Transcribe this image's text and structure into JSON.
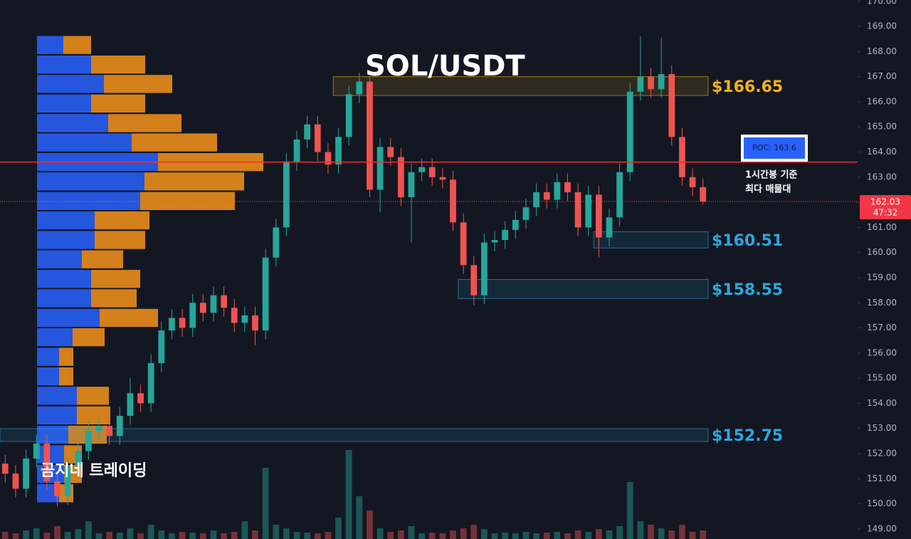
{
  "chart_data": {
    "type": "candlestick",
    "title": "SOL/USDT",
    "watermark": "곰지네 트레이딩",
    "ylim": [
      148.6,
      170.05
    ],
    "yticks": [
      {
        "value": 149,
        "label": "149.00"
      },
      {
        "value": 150,
        "label": "150.00"
      },
      {
        "value": 151,
        "label": "151.00"
      },
      {
        "value": 152,
        "label": "152.00"
      },
      {
        "value": 153,
        "label": "153.00"
      },
      {
        "value": 154,
        "label": "154.00"
      },
      {
        "value": 155,
        "label": "155.00"
      },
      {
        "value": 156,
        "label": "156.00"
      },
      {
        "value": 157,
        "label": "157.00"
      },
      {
        "value": 158,
        "label": "158.00"
      },
      {
        "value": 159,
        "label": "159.00"
      },
      {
        "value": 160,
        "label": "160.00"
      },
      {
        "value": 161,
        "label": "161.00"
      },
      {
        "value": 162,
        "label": "162.00"
      },
      {
        "value": 163,
        "label": "163.00"
      },
      {
        "value": 164,
        "label": "164.00"
      },
      {
        "value": 165,
        "label": "165.00"
      },
      {
        "value": 166,
        "label": "166.00"
      },
      {
        "value": 167,
        "label": "167.00"
      },
      {
        "value": 168,
        "label": "168.00"
      },
      {
        "value": 169,
        "label": "169.00"
      },
      {
        "value": 170,
        "label": "170.00"
      }
    ],
    "up_color": "#26a69a",
    "down_color": "#ef5350",
    "candles": {
      "open": [
        151.6,
        151.2,
        150.6,
        151.8,
        152.4,
        150.9,
        150.3,
        151.5,
        152.1,
        152.9,
        153.1,
        152.7,
        153.5,
        154.4,
        154.0,
        155.6,
        156.9,
        157.4,
        157.0,
        158.0,
        157.6,
        158.3,
        157.8,
        157.2,
        157.5,
        156.9,
        159.8,
        161.0,
        163.6,
        164.5,
        165.1,
        164.0,
        163.5,
        164.6,
        166.3,
        166.8,
        162.5,
        164.2,
        163.8,
        162.2,
        163.2,
        163.4,
        163.0,
        162.9,
        161.2,
        159.5,
        158.3,
        160.4,
        160.5,
        160.9,
        161.3,
        161.8,
        162.4,
        162.1,
        162.8,
        162.4,
        161.0,
        162.3,
        160.6,
        161.4,
        163.2,
        166.4,
        167.0,
        166.5,
        167.1,
        164.6,
        163.0,
        162.6
      ],
      "high": [
        151.95,
        151.55,
        152.15,
        152.75,
        152.75,
        151.25,
        151.85,
        152.45,
        153.25,
        153.45,
        153.45,
        153.85,
        155.0,
        154.75,
        155.95,
        157.25,
        157.75,
        157.75,
        158.35,
        158.35,
        158.65,
        158.65,
        158.15,
        157.85,
        157.85,
        160.15,
        161.35,
        163.95,
        164.85,
        165.45,
        165.45,
        164.35,
        164.95,
        166.65,
        167.15,
        167.0,
        164.55,
        164.55,
        164.15,
        163.55,
        163.75,
        163.75,
        163.35,
        163.25,
        161.55,
        159.85,
        160.75,
        160.85,
        161.25,
        161.65,
        162.15,
        162.75,
        162.75,
        163.15,
        163.15,
        162.75,
        162.65,
        162.65,
        161.75,
        163.55,
        166.75,
        168.6,
        167.35,
        168.55,
        167.45,
        164.95,
        163.35,
        162.95
      ],
      "low": [
        150.85,
        150.25,
        150.25,
        151.45,
        150.55,
        149.9,
        149.95,
        151.15,
        151.75,
        152.55,
        152.35,
        152.35,
        153.15,
        153.65,
        153.65,
        155.25,
        156.55,
        156.65,
        156.65,
        157.25,
        157.25,
        157.45,
        156.85,
        156.85,
        156.3,
        156.55,
        159.45,
        160.65,
        163.25,
        164.15,
        163.65,
        163.15,
        163.15,
        164.25,
        165.95,
        162.2,
        161.6,
        163.45,
        161.85,
        160.4,
        162.85,
        162.65,
        162.55,
        160.85,
        159.15,
        157.9,
        157.95,
        160.05,
        160.15,
        160.55,
        160.95,
        161.45,
        161.75,
        161.75,
        162.05,
        160.65,
        160.65,
        159.8,
        160.25,
        161.05,
        162.85,
        166.05,
        166.15,
        166.15,
        164.25,
        162.65,
        162.25,
        161.9
      ],
      "close": [
        151.2,
        150.6,
        151.8,
        152.4,
        150.9,
        150.3,
        151.5,
        152.1,
        152.9,
        153.1,
        152.7,
        153.5,
        154.4,
        154.0,
        155.6,
        156.9,
        157.4,
        157.0,
        158.0,
        157.6,
        158.3,
        157.8,
        157.2,
        157.5,
        156.9,
        159.8,
        161.0,
        163.6,
        164.5,
        165.1,
        164.0,
        163.5,
        164.6,
        166.3,
        166.8,
        162.5,
        164.2,
        163.8,
        162.2,
        163.2,
        163.4,
        163.0,
        162.9,
        161.2,
        159.5,
        158.3,
        160.4,
        160.5,
        160.9,
        161.3,
        161.8,
        162.4,
        162.1,
        162.8,
        162.4,
        161.0,
        162.3,
        160.6,
        161.4,
        163.2,
        166.4,
        167.0,
        166.5,
        167.1,
        164.6,
        163.0,
        162.6,
        162.03
      ],
      "volume": [
        10,
        8,
        12,
        15,
        9,
        18,
        10,
        14,
        25,
        8,
        10,
        9,
        15,
        8,
        20,
        12,
        8,
        10,
        9,
        8,
        12,
        8,
        10,
        25,
        12,
        100,
        20,
        15,
        10,
        9,
        8,
        10,
        30,
        125,
        60,
        40,
        15,
        10,
        12,
        18,
        8,
        9,
        8,
        12,
        15,
        20,
        14,
        8,
        9,
        8,
        10,
        8,
        9,
        10,
        8,
        12,
        10,
        14,
        12,
        18,
        80,
        25,
        20,
        15,
        12,
        20,
        10,
        12
      ]
    },
    "volume_profile": {
      "prices": [
        168.26,
        167.48,
        166.71,
        165.93,
        165.15,
        164.38,
        163.6,
        162.83,
        162.05,
        161.28,
        160.5,
        159.73,
        158.95,
        158.18,
        157.4,
        156.63,
        155.85,
        155.07,
        154.3,
        153.52,
        152.75,
        151.97,
        151.19,
        150.42
      ],
      "buy": [
        37,
        76,
        94,
        76,
        100,
        133,
        170,
        151,
        145,
        81,
        81,
        63,
        76,
        76,
        88,
        50,
        31,
        31,
        56,
        56,
        44,
        38,
        38,
        31
      ],
      "sell": [
        39,
        76,
        96,
        76,
        103,
        120,
        148,
        140,
        133,
        77,
        71,
        58,
        69,
        64,
        82,
        45,
        20,
        20,
        45,
        47,
        54,
        25,
        25,
        20
      ],
      "buy_color": "#2962ff",
      "sell_color": "#f7931a"
    },
    "zones": [
      {
        "label": "$166.65",
        "top": 167.0,
        "bottom": 166.25,
        "start": 32,
        "color": "#f5b316"
      },
      {
        "label": "$160.51",
        "top": 160.83,
        "bottom": 160.18,
        "start": 57,
        "color": "#29a8e0"
      },
      {
        "label": "$158.55",
        "top": 158.93,
        "bottom": 158.17,
        "start": 44,
        "color": "#29a8e0"
      },
      {
        "label": "$152.75",
        "top": 152.99,
        "bottom": 152.48,
        "start": 0,
        "color": "#29a8e0"
      }
    ],
    "poc": {
      "value": 163.6,
      "label": "POC: 163.6"
    },
    "poc_note": [
      "1시간봉 기준",
      "최다 매물대"
    ],
    "last_price": 162.03,
    "countdown": "47:32"
  }
}
